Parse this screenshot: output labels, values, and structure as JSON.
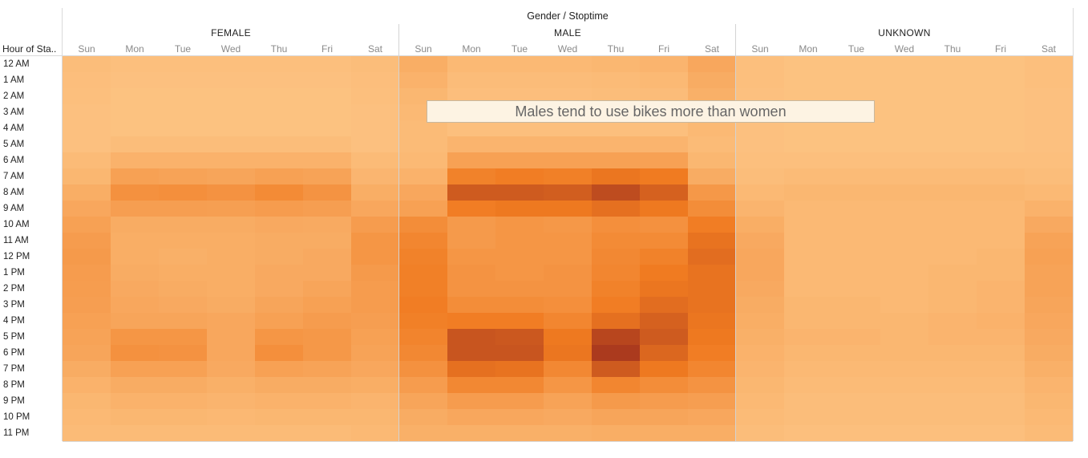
{
  "chart_data": {
    "type": "heatmap",
    "title": "Gender  /  Stoptime",
    "row_header": "Hour of Sta..",
    "rows": [
      "12 AM",
      "1 AM",
      "2 AM",
      "3 AM",
      "4 AM",
      "5 AM",
      "6 AM",
      "7 AM",
      "8 AM",
      "9 AM",
      "10 AM",
      "11 AM",
      "12 PM",
      "1 PM",
      "2 PM",
      "3 PM",
      "4 PM",
      "5 PM",
      "6 PM",
      "7 PM",
      "8 PM",
      "9 PM",
      "10 PM",
      "11 PM"
    ],
    "groups": [
      {
        "name": "FEMALE",
        "days": [
          "Sun",
          "Mon",
          "Tue",
          "Wed",
          "Thu",
          "Fri",
          "Sat"
        ],
        "values": [
          [
            8,
            6,
            6,
            6,
            6,
            6,
            8
          ],
          [
            7,
            5,
            5,
            5,
            5,
            5,
            7
          ],
          [
            6,
            4,
            4,
            4,
            4,
            4,
            6
          ],
          [
            5,
            4,
            4,
            4,
            4,
            4,
            5
          ],
          [
            5,
            4,
            4,
            4,
            4,
            4,
            5
          ],
          [
            5,
            8,
            8,
            8,
            8,
            8,
            5
          ],
          [
            10,
            18,
            18,
            18,
            18,
            18,
            10
          ],
          [
            14,
            34,
            32,
            30,
            34,
            32,
            15
          ],
          [
            22,
            48,
            50,
            47,
            54,
            46,
            22
          ],
          [
            28,
            36,
            36,
            35,
            38,
            36,
            28
          ],
          [
            34,
            24,
            24,
            24,
            26,
            25,
            38
          ],
          [
            38,
            22,
            22,
            22,
            24,
            24,
            44
          ],
          [
            40,
            22,
            20,
            22,
            24,
            26,
            44
          ],
          [
            38,
            24,
            22,
            22,
            26,
            26,
            40
          ],
          [
            37,
            26,
            24,
            22,
            26,
            30,
            38
          ],
          [
            36,
            28,
            26,
            24,
            30,
            34,
            38
          ],
          [
            34,
            30,
            30,
            28,
            34,
            38,
            36
          ],
          [
            32,
            44,
            44,
            28,
            44,
            42,
            34
          ],
          [
            30,
            48,
            47,
            28,
            50,
            42,
            32
          ],
          [
            24,
            34,
            34,
            26,
            34,
            32,
            28
          ],
          [
            18,
            24,
            24,
            20,
            24,
            24,
            22
          ],
          [
            14,
            18,
            18,
            16,
            18,
            18,
            16
          ],
          [
            12,
            14,
            14,
            13,
            14,
            14,
            14
          ],
          [
            10,
            10,
            10,
            10,
            10,
            10,
            12
          ]
        ]
      },
      {
        "name": "MALE",
        "days": [
          "Sun",
          "Mon",
          "Tue",
          "Wed",
          "Thu",
          "Fri",
          "Sat"
        ],
        "values": [
          [
            22,
            12,
            12,
            12,
            14,
            16,
            28
          ],
          [
            18,
            9,
            9,
            9,
            10,
            12,
            24
          ],
          [
            14,
            7,
            7,
            7,
            8,
            9,
            20
          ],
          [
            12,
            6,
            6,
            6,
            6,
            7,
            15
          ],
          [
            10,
            6,
            6,
            6,
            6,
            6,
            12
          ],
          [
            10,
            16,
            16,
            16,
            16,
            16,
            10
          ],
          [
            12,
            34,
            34,
            34,
            34,
            34,
            14
          ],
          [
            18,
            62,
            66,
            64,
            72,
            68,
            24
          ],
          [
            28,
            90,
            90,
            88,
            100,
            86,
            42
          ],
          [
            34,
            66,
            70,
            70,
            76,
            70,
            52
          ],
          [
            52,
            40,
            44,
            42,
            50,
            48,
            66
          ],
          [
            58,
            40,
            44,
            44,
            54,
            54,
            74
          ],
          [
            62,
            44,
            44,
            44,
            56,
            62,
            78
          ],
          [
            64,
            46,
            44,
            46,
            58,
            68,
            74
          ],
          [
            64,
            46,
            46,
            46,
            62,
            72,
            74
          ],
          [
            66,
            52,
            52,
            50,
            66,
            78,
            74
          ],
          [
            64,
            66,
            66,
            58,
            76,
            86,
            72
          ],
          [
            60,
            94,
            92,
            70,
            104,
            90,
            70
          ],
          [
            56,
            94,
            94,
            72,
            112,
            82,
            66
          ],
          [
            48,
            76,
            74,
            56,
            90,
            70,
            58
          ],
          [
            38,
            56,
            56,
            44,
            58,
            52,
            46
          ],
          [
            30,
            38,
            38,
            32,
            40,
            38,
            36
          ],
          [
            24,
            28,
            28,
            26,
            30,
            30,
            28
          ],
          [
            20,
            20,
            20,
            20,
            22,
            22,
            22
          ]
        ]
      },
      {
        "name": "UNKNOWN",
        "days": [
          "Sun",
          "Mon",
          "Tue",
          "Wed",
          "Thu",
          "Fri",
          "Sat"
        ],
        "values": [
          [
            6,
            4,
            4,
            4,
            4,
            4,
            6
          ],
          [
            6,
            4,
            4,
            4,
            4,
            4,
            6
          ],
          [
            5,
            4,
            4,
            4,
            4,
            4,
            5
          ],
          [
            5,
            4,
            4,
            4,
            4,
            4,
            5
          ],
          [
            5,
            4,
            4,
            4,
            4,
            4,
            5
          ],
          [
            5,
            4,
            4,
            4,
            4,
            4,
            5
          ],
          [
            6,
            6,
            6,
            6,
            6,
            6,
            6
          ],
          [
            8,
            10,
            10,
            10,
            10,
            10,
            8
          ],
          [
            12,
            14,
            14,
            14,
            14,
            14,
            12
          ],
          [
            16,
            12,
            12,
            12,
            12,
            12,
            18
          ],
          [
            22,
            12,
            12,
            12,
            12,
            12,
            26
          ],
          [
            26,
            12,
            12,
            12,
            12,
            12,
            32
          ],
          [
            28,
            12,
            12,
            12,
            12,
            14,
            34
          ],
          [
            28,
            12,
            12,
            12,
            14,
            14,
            32
          ],
          [
            26,
            12,
            12,
            12,
            14,
            16,
            32
          ],
          [
            24,
            14,
            14,
            12,
            14,
            16,
            30
          ],
          [
            22,
            14,
            14,
            14,
            16,
            18,
            28
          ],
          [
            20,
            16,
            16,
            14,
            16,
            16,
            26
          ],
          [
            18,
            14,
            14,
            14,
            14,
            14,
            24
          ],
          [
            16,
            12,
            12,
            12,
            12,
            12,
            20
          ],
          [
            14,
            10,
            10,
            10,
            10,
            10,
            16
          ],
          [
            12,
            8,
            8,
            8,
            8,
            8,
            14
          ],
          [
            10,
            8,
            8,
            8,
            8,
            8,
            12
          ],
          [
            8,
            6,
            6,
            6,
            6,
            6,
            10
          ]
        ]
      }
    ],
    "value_range": [
      0,
      115
    ],
    "color_low": "#fdc686",
    "color_mid": "#f07a20",
    "color_high": "#a6361e",
    "legend": "none",
    "grid": false,
    "annotation": "Males tend to use bikes more than women"
  }
}
